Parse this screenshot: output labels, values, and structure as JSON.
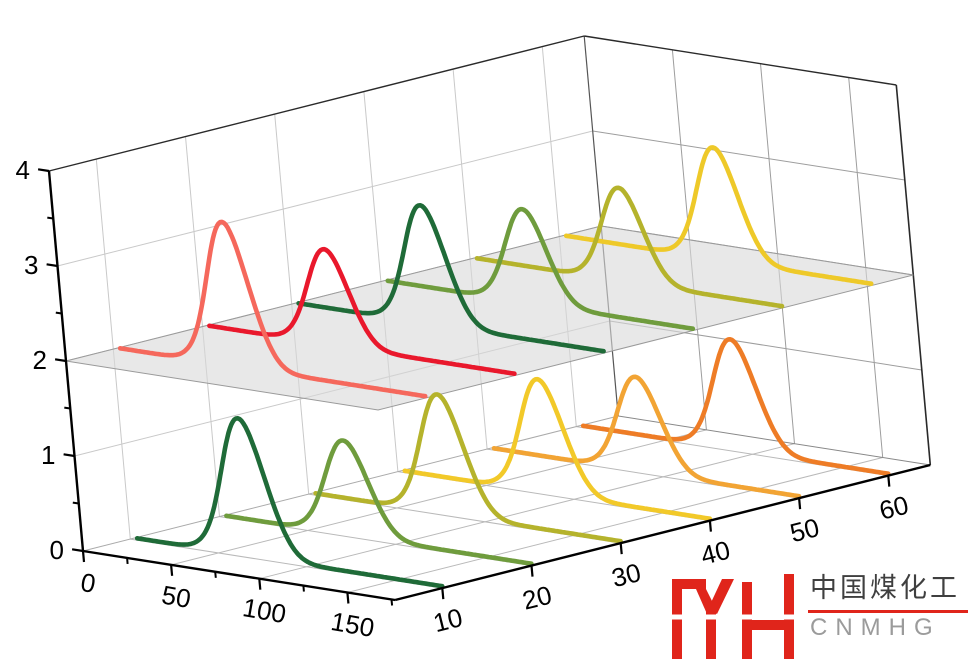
{
  "chart_data": {
    "type": "line",
    "subtype": "3d-waterfall",
    "title": "",
    "x_axis": {
      "range": [
        0,
        177
      ],
      "major_ticks": [
        0,
        50,
        100,
        150
      ],
      "minor_ticks": [
        25,
        75,
        125,
        175
      ],
      "grid_ticks": [
        50,
        100,
        150
      ],
      "label_rotation": 10
    },
    "y_axis": {
      "range": [
        4.7,
        64.7
      ],
      "major_ticks": [
        10,
        20,
        30,
        40,
        50,
        60
      ],
      "label_rotation": -14
    },
    "z_axis": {
      "range": [
        0,
        4
      ],
      "major_ticks": [
        0,
        1,
        2,
        3,
        4
      ],
      "minor_ticks": [
        0.5,
        1.5,
        2.5,
        3.5
      ],
      "grid_levels": [
        1,
        2,
        3
      ]
    },
    "reference_plane": {
      "z": 2,
      "fill": "#d9d9d9",
      "opacity": 0.6,
      "edge": "#9a9a9a"
    },
    "curve_x_span": [
      4,
      177
    ],
    "series": [
      {
        "layer": "bottom",
        "y": 10,
        "peak_x": 68,
        "amplitude": 1.45,
        "sigma": 12,
        "baseline": 0.02,
        "color": "#1f6b38"
      },
      {
        "layer": "bottom",
        "y": 20,
        "peak_x": 75,
        "amplitude": 1.0,
        "sigma": 12,
        "baseline": 0.02,
        "color": "#6f9c3d"
      },
      {
        "layer": "bottom",
        "y": 30,
        "peak_x": 79,
        "amplitude": 1.26,
        "sigma": 12,
        "baseline": 0.02,
        "color": "#b5b32c"
      },
      {
        "layer": "bottom",
        "y": 40,
        "peak_x": 85,
        "amplitude": 1.2,
        "sigma": 12,
        "baseline": 0.02,
        "color": "#f2c929"
      },
      {
        "layer": "bottom",
        "y": 50,
        "peak_x": 89,
        "amplitude": 1.0,
        "sigma": 12,
        "baseline": 0.02,
        "color": "#f2a434"
      },
      {
        "layer": "bottom",
        "y": 60,
        "peak_x": 93,
        "amplitude": 1.17,
        "sigma": 12,
        "baseline": 0.02,
        "color": "#ee7c26"
      },
      {
        "layer": "top",
        "y": 10,
        "peak_x": 69,
        "amplitude": 1.52,
        "sigma": 11.5,
        "baseline": 2.02,
        "color": "#f5685c"
      },
      {
        "layer": "top",
        "y": 20,
        "peak_x": 74,
        "amplitude": 1.01,
        "sigma": 11.5,
        "baseline": 2.02,
        "color": "#e9182c"
      },
      {
        "layer": "top",
        "y": 30,
        "peak_x": 79,
        "amplitude": 1.25,
        "sigma": 11.5,
        "baseline": 2.02,
        "color": "#1f6b38"
      },
      {
        "layer": "top",
        "y": 40,
        "peak_x": 85,
        "amplitude": 0.99,
        "sigma": 11.5,
        "baseline": 2.02,
        "color": "#6f9c3d"
      },
      {
        "layer": "top",
        "y": 50,
        "peak_x": 89,
        "amplitude": 0.99,
        "sigma": 11.5,
        "baseline": 2.02,
        "color": "#b5b32c"
      },
      {
        "layer": "top",
        "y": 60,
        "peak_x": 93,
        "amplitude": 1.19,
        "sigma": 11.5,
        "baseline": 2.02,
        "color": "#eec929"
      }
    ],
    "projection": {
      "origin": [
        83,
        551
      ],
      "ex": [
        1.763,
        0.277
      ],
      "ey": [
        8.92,
        -2.25
      ],
      "ez": [
        -8.5,
        -95
      ]
    },
    "style": {
      "axis_color": "#000000",
      "box_edge_color": "#2a2a2a",
      "hidden_edge_color": "#555555",
      "floor_edge_color": "#aaaaaa",
      "floor_back_edge_color": "#888888",
      "wall_grid": "#c9c9c9",
      "back_grid": "#9d9d9d",
      "floor_grid": "#b9b9b9",
      "tick_font_size": 26,
      "curve_width": 4.6,
      "tick_len_major": 11,
      "tick_len_minor": 6
    }
  },
  "watermark": {
    "company_cn": "中国煤化工",
    "company_code": "CNMHG",
    "mark_color": "#e0251b",
    "cn_color": "#3f3f3f",
    "code_color": "#9b9b9b",
    "underline_color": "#e0251b"
  }
}
